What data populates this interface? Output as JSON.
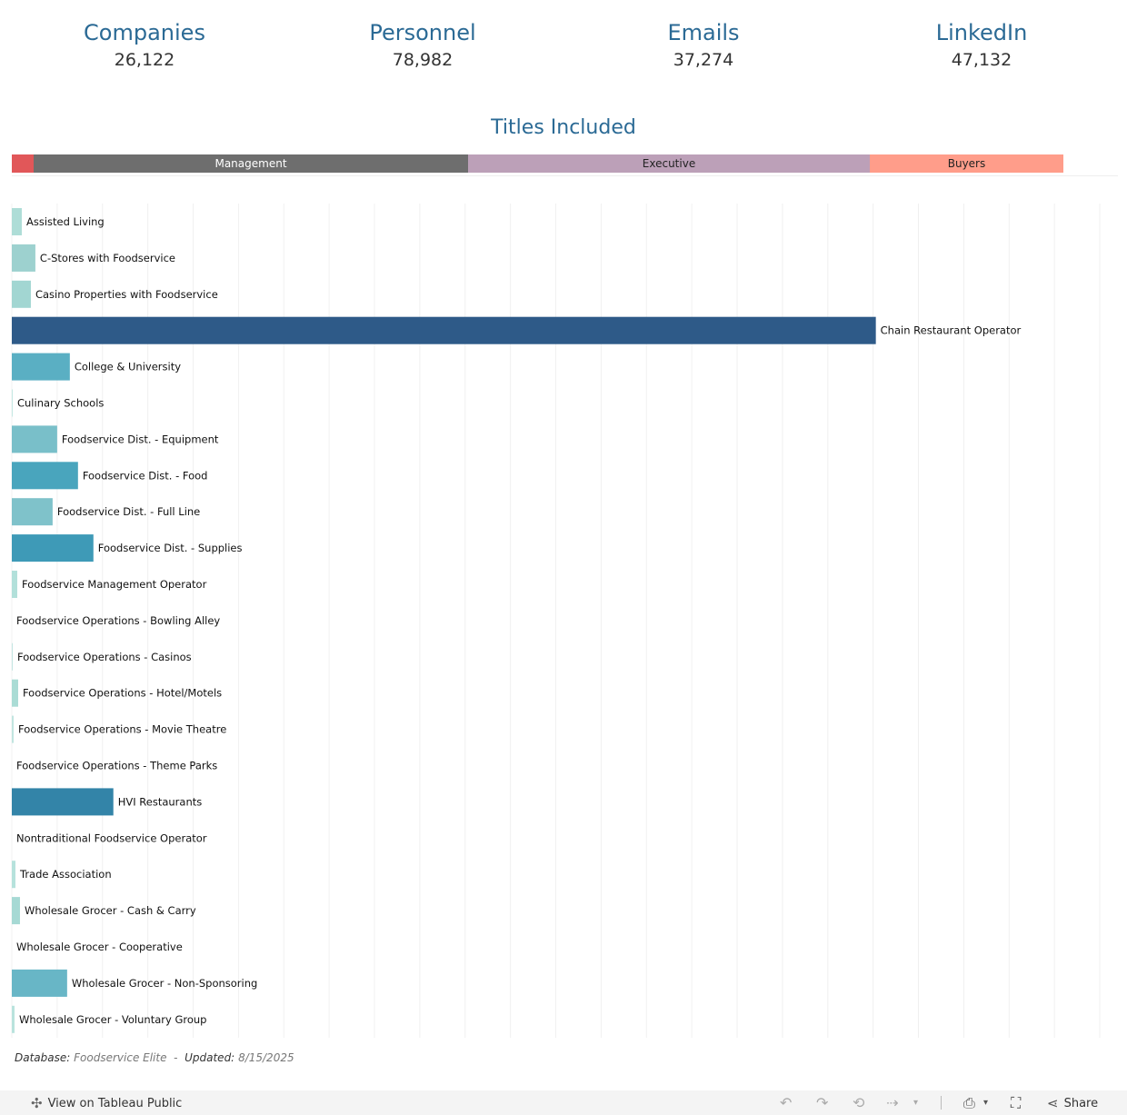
{
  "kpis": [
    {
      "label": "Companies",
      "value": "26,122"
    },
    {
      "label": "Personnel",
      "value": "78,982"
    },
    {
      "label": "Emails",
      "value": "37,274"
    },
    {
      "label": "LinkedIn",
      "value": "47,132"
    }
  ],
  "titles_section": {
    "title": "Titles Included",
    "segments": [
      {
        "label": "",
        "share": 0.021,
        "color": "#e15759",
        "text_color": "#ffffff"
      },
      {
        "label": "Management",
        "share": 0.412,
        "color": "#6e6e6e",
        "text_color": "#ffffff"
      },
      {
        "label": "Executive",
        "share": 0.381,
        "color": "#bca0b8",
        "text_color": "#222222"
      },
      {
        "label": "Buyers",
        "share": 0.184,
        "color": "#ff9d8a",
        "text_color": "#222222"
      }
    ]
  },
  "chart_data": {
    "type": "bar",
    "orientation": "horizontal",
    "categories": [
      "Assisted Living",
      "C-Stores with Foodservice",
      "Casino Properties with Foodservice",
      "Chain Restaurant Operator",
      "College & University",
      "Culinary Schools",
      "Foodservice Dist. - Equipment",
      "Foodservice Dist. - Food",
      "Foodservice Dist. - Full Line",
      "Foodservice Dist. - Supplies",
      "Foodservice Management Operator",
      "Foodservice Operations - Bowling Alley",
      "Foodservice Operations - Casinos",
      "Foodservice Operations - Hotel/Motels",
      "Foodservice Operations - Movie Theatre",
      "Foodservice Operations - Theme Parks",
      "HVI Restaurants",
      "Nontraditional Foodservice Operator",
      "Trade Association",
      "Wholesale Grocer - Cash & Carry",
      "Wholesale Grocer - Cooperative",
      "Wholesale Grocer - Non-Sponsoring",
      "Wholesale Grocer - Voluntary Group"
    ],
    "values": [
      11,
      26,
      21,
      953,
      64,
      1,
      50,
      73,
      45,
      90,
      6,
      0,
      1,
      7,
      2,
      0,
      112,
      0,
      4,
      9,
      0,
      61,
      3
    ],
    "colors": [
      "#aeddd7",
      "#9dd1cf",
      "#a2d6d2",
      "#2e5a88",
      "#5aafc3",
      "#c6e8e3",
      "#79bfc9",
      "#49a5bd",
      "#7fc2ca",
      "#3e9ab7",
      "#b2e0da",
      "#cceae6",
      "#c4e6e2",
      "#aadcd5",
      "#c1e5e0",
      "#cceae6",
      "#3384a8",
      "#cceae6",
      "#b6e2dc",
      "#a6d9d4",
      "#cceae6",
      "#68b6c6",
      "#b9e3dd"
    ],
    "xlim": [
      0,
      1220
    ],
    "grid": true
  },
  "footer": {
    "database_label": "Database:",
    "database_value": "Foodservice Elite",
    "separator": "-",
    "updated_label": "Updated:",
    "updated_value": "8/15/2025"
  },
  "toolbar": {
    "view_label": "View on Tableau Public",
    "share_label": "Share"
  }
}
